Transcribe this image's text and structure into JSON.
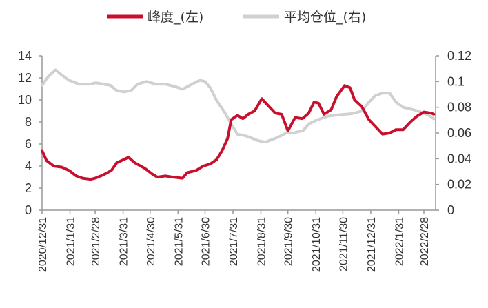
{
  "chart_data": {
    "type": "line",
    "title": "",
    "x_unit": "days since 2020/12/31",
    "legend": [
      "峰度_(左)",
      "平均仓位_(右)"
    ],
    "legend_position": "top",
    "colors": {
      "series_1": "#c8102e",
      "series_2": "#d0d0d0",
      "axis": "#999999"
    },
    "x_ticks": [
      "2020/12/31",
      "2021/1/31",
      "2021/2/28",
      "2021/3/31",
      "2021/4/30",
      "2021/5/31",
      "2021/6/30",
      "2021/7/31",
      "2021/8/31",
      "2021/9/30",
      "2021/10/31",
      "2021/11/30",
      "2021/12/31",
      "2022/1/31",
      "2022/2/28"
    ],
    "x_tick_days": [
      0,
      31,
      59,
      90,
      120,
      151,
      181,
      212,
      243,
      273,
      304,
      334,
      365,
      396,
      424
    ],
    "xlim": [
      0,
      437
    ],
    "y_left": {
      "ticks": [
        "0",
        "2",
        "4",
        "6",
        "8",
        "10",
        "12",
        "14"
      ],
      "ylim": [
        0,
        14
      ]
    },
    "y_right": {
      "ticks": [
        "0",
        "0.02",
        "0.04",
        "0.06",
        "0.08",
        "0.1",
        "0.12"
      ],
      "ylim": [
        0,
        0.12
      ]
    },
    "series": [
      {
        "name": "峰度_(左)",
        "axis": "left",
        "x": [
          0,
          5,
          13,
          22,
          30,
          38,
          45,
          54,
          59,
          68,
          77,
          83,
          91,
          96,
          103,
          114,
          122,
          128,
          137,
          145,
          156,
          161,
          171,
          179,
          187,
          194,
          200,
          206,
          210,
          217,
          223,
          229,
          236,
          244,
          252,
          259,
          266,
          273,
          281,
          289,
          296,
          302,
          307,
          313,
          321,
          327,
          336,
          342,
          347,
          355,
          363,
          370,
          378,
          386,
          393,
          401,
          409,
          416,
          424,
          432,
          435
        ],
        "y": [
          5.4,
          4.5,
          4.0,
          3.9,
          3.6,
          3.1,
          2.9,
          2.8,
          2.9,
          3.2,
          3.6,
          4.3,
          4.6,
          4.8,
          4.3,
          3.8,
          3.3,
          3.0,
          3.1,
          3.0,
          2.9,
          3.4,
          3.6,
          4.0,
          4.2,
          4.6,
          5.4,
          6.5,
          8.2,
          8.6,
          8.3,
          8.7,
          9.0,
          10.1,
          9.4,
          8.8,
          8.7,
          7.2,
          8.4,
          8.3,
          8.8,
          9.8,
          9.7,
          8.7,
          9.1,
          10.3,
          11.3,
          11.1,
          10.0,
          9.4,
          8.2,
          7.6,
          6.9,
          7.0,
          7.3,
          7.3,
          8.0,
          8.5,
          8.9,
          8.8,
          8.7
        ]
      },
      {
        "name": "平均仓位_(右)",
        "axis": "right",
        "x": [
          0,
          7,
          15,
          22,
          30,
          41,
          53,
          60,
          68,
          76,
          83,
          91,
          99,
          106,
          116,
          126,
          137,
          148,
          156,
          164,
          175,
          181,
          187,
          194,
          202,
          210,
          217,
          225,
          233,
          240,
          248,
          256,
          263,
          271,
          279,
          290,
          296,
          305,
          317,
          328,
          344,
          355,
          363,
          370,
          378,
          386,
          393,
          401,
          413,
          422,
          429,
          435
        ],
        "y": [
          0.097,
          0.104,
          0.109,
          0.105,
          0.101,
          0.098,
          0.098,
          0.099,
          0.098,
          0.097,
          0.093,
          0.092,
          0.093,
          0.098,
          0.1,
          0.098,
          0.098,
          0.096,
          0.094,
          0.097,
          0.101,
          0.1,
          0.095,
          0.085,
          0.077,
          0.067,
          0.059,
          0.058,
          0.056,
          0.054,
          0.053,
          0.055,
          0.057,
          0.06,
          0.06,
          0.062,
          0.067,
          0.07,
          0.073,
          0.074,
          0.075,
          0.077,
          0.084,
          0.089,
          0.091,
          0.091,
          0.084,
          0.08,
          0.078,
          0.076,
          0.074,
          0.071
        ]
      }
    ]
  }
}
